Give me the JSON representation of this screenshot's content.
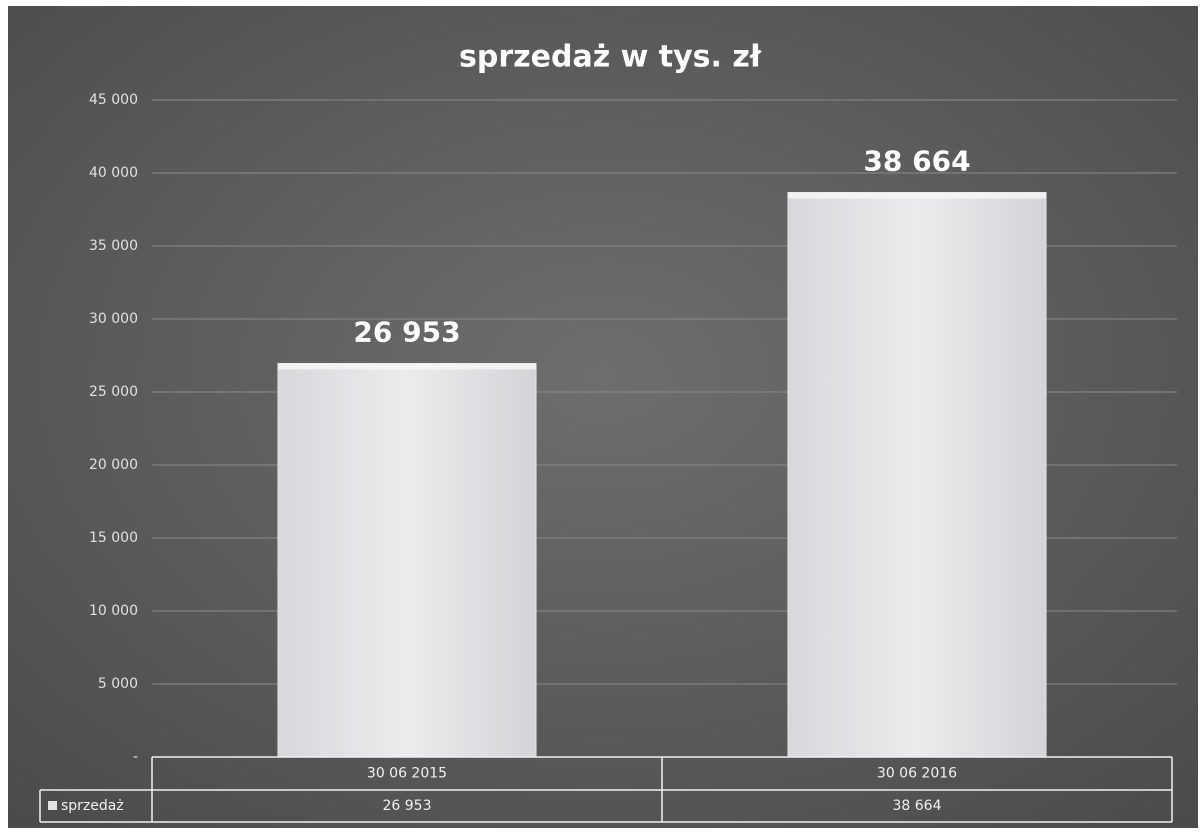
{
  "chart_data": {
    "type": "bar",
    "title": "sprzedaż w tys. zł",
    "categories": [
      "30 06 2015",
      "30 06 2016"
    ],
    "series": [
      {
        "name": "sprzedaż",
        "color": "#e4e4e6",
        "values": [
          26953,
          38664
        ],
        "value_labels": [
          "26 953",
          "38 664"
        ]
      }
    ],
    "ylim": [
      0,
      45000
    ],
    "yticks": [
      {
        "value": 0,
        "label": "-"
      },
      {
        "value": 5000,
        "label": "5 000"
      },
      {
        "value": 10000,
        "label": "10 000"
      },
      {
        "value": 15000,
        "label": "15 000"
      },
      {
        "value": 20000,
        "label": "20 000"
      },
      {
        "value": 25000,
        "label": "25 000"
      },
      {
        "value": 30000,
        "label": "30 000"
      },
      {
        "value": 35000,
        "label": "35 000"
      },
      {
        "value": 40000,
        "label": "40 000"
      },
      {
        "value": 45000,
        "label": "45 000"
      }
    ],
    "grid": true,
    "data_table": true
  }
}
